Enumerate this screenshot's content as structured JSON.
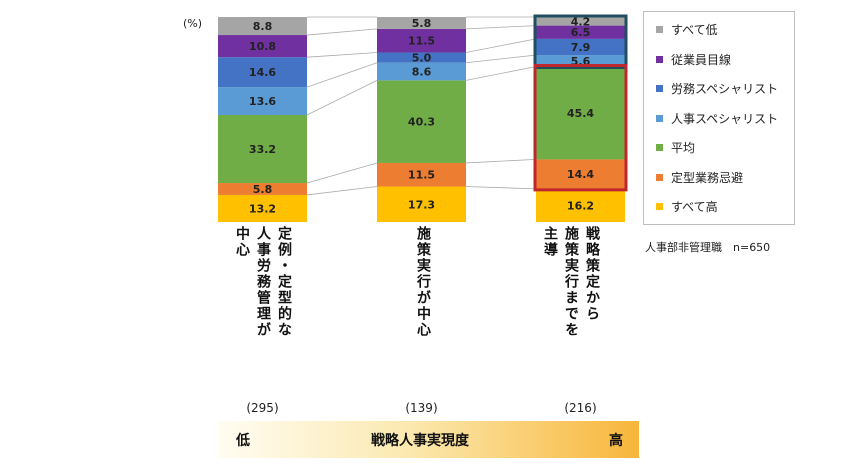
{
  "unit_label": "(%)",
  "chart_data": {
    "type": "bar",
    "stacked": true,
    "categories": [
      "定例・定型的な人事労務管理が中心",
      "施策実行が中心",
      "戦略策定から施策実行までを主導"
    ],
    "category_lines": [
      [
        "定例・定型的な",
        "人事労務管理が",
        "中心"
      ],
      [
        "施策実行が中心"
      ],
      [
        "戦略策定から",
        "施策実行までを",
        "主導"
      ]
    ],
    "counts": [
      "(295)",
      "(139)",
      "(216)"
    ],
    "series": [
      {
        "name": "すべて高",
        "color": "#ffc000",
        "values": [
          13.2,
          17.3,
          16.2
        ]
      },
      {
        "name": "定型業務忌避",
        "color": "#ed7d31",
        "values": [
          5.8,
          11.5,
          14.4
        ]
      },
      {
        "name": "平均",
        "color": "#70ad47",
        "values": [
          33.2,
          40.3,
          45.4
        ]
      },
      {
        "name": "人事スペシャリスト",
        "color": "#5b9bd5",
        "values": [
          13.6,
          8.6,
          5.6
        ]
      },
      {
        "name": "労務スペシャリスト",
        "color": "#4472c4",
        "values": [
          14.6,
          5.0,
          7.9
        ]
      },
      {
        "name": "従業員目線",
        "color": "#7030a0",
        "values": [
          10.8,
          11.5,
          6.5
        ]
      },
      {
        "name": "すべて低",
        "color": "#a5a5a5",
        "values": [
          8.8,
          5.8,
          4.2
        ]
      }
    ],
    "legend_order": [
      "すべて低",
      "従業員目線",
      "労務スペシャリスト",
      "人事スペシャリスト",
      "平均",
      "定型業務忌避",
      "すべて高"
    ],
    "legend_position": "right",
    "highlight_boxes": [
      {
        "category_index": 2,
        "series": [
          "人事スペシャリスト",
          "労務スペシャリスト",
          "従業員目線",
          "すべて低"
        ],
        "border_color": "#1f4e5f"
      },
      {
        "category_index": 2,
        "series": [
          "平均",
          "定型業務忌避"
        ],
        "border_color": "#c0272d"
      }
    ],
    "ylim": [
      0,
      100
    ]
  },
  "note": "人事部非管理職　n=650",
  "axis_bar": {
    "low": "低",
    "title": "戦略人事実現度",
    "high": "高"
  }
}
